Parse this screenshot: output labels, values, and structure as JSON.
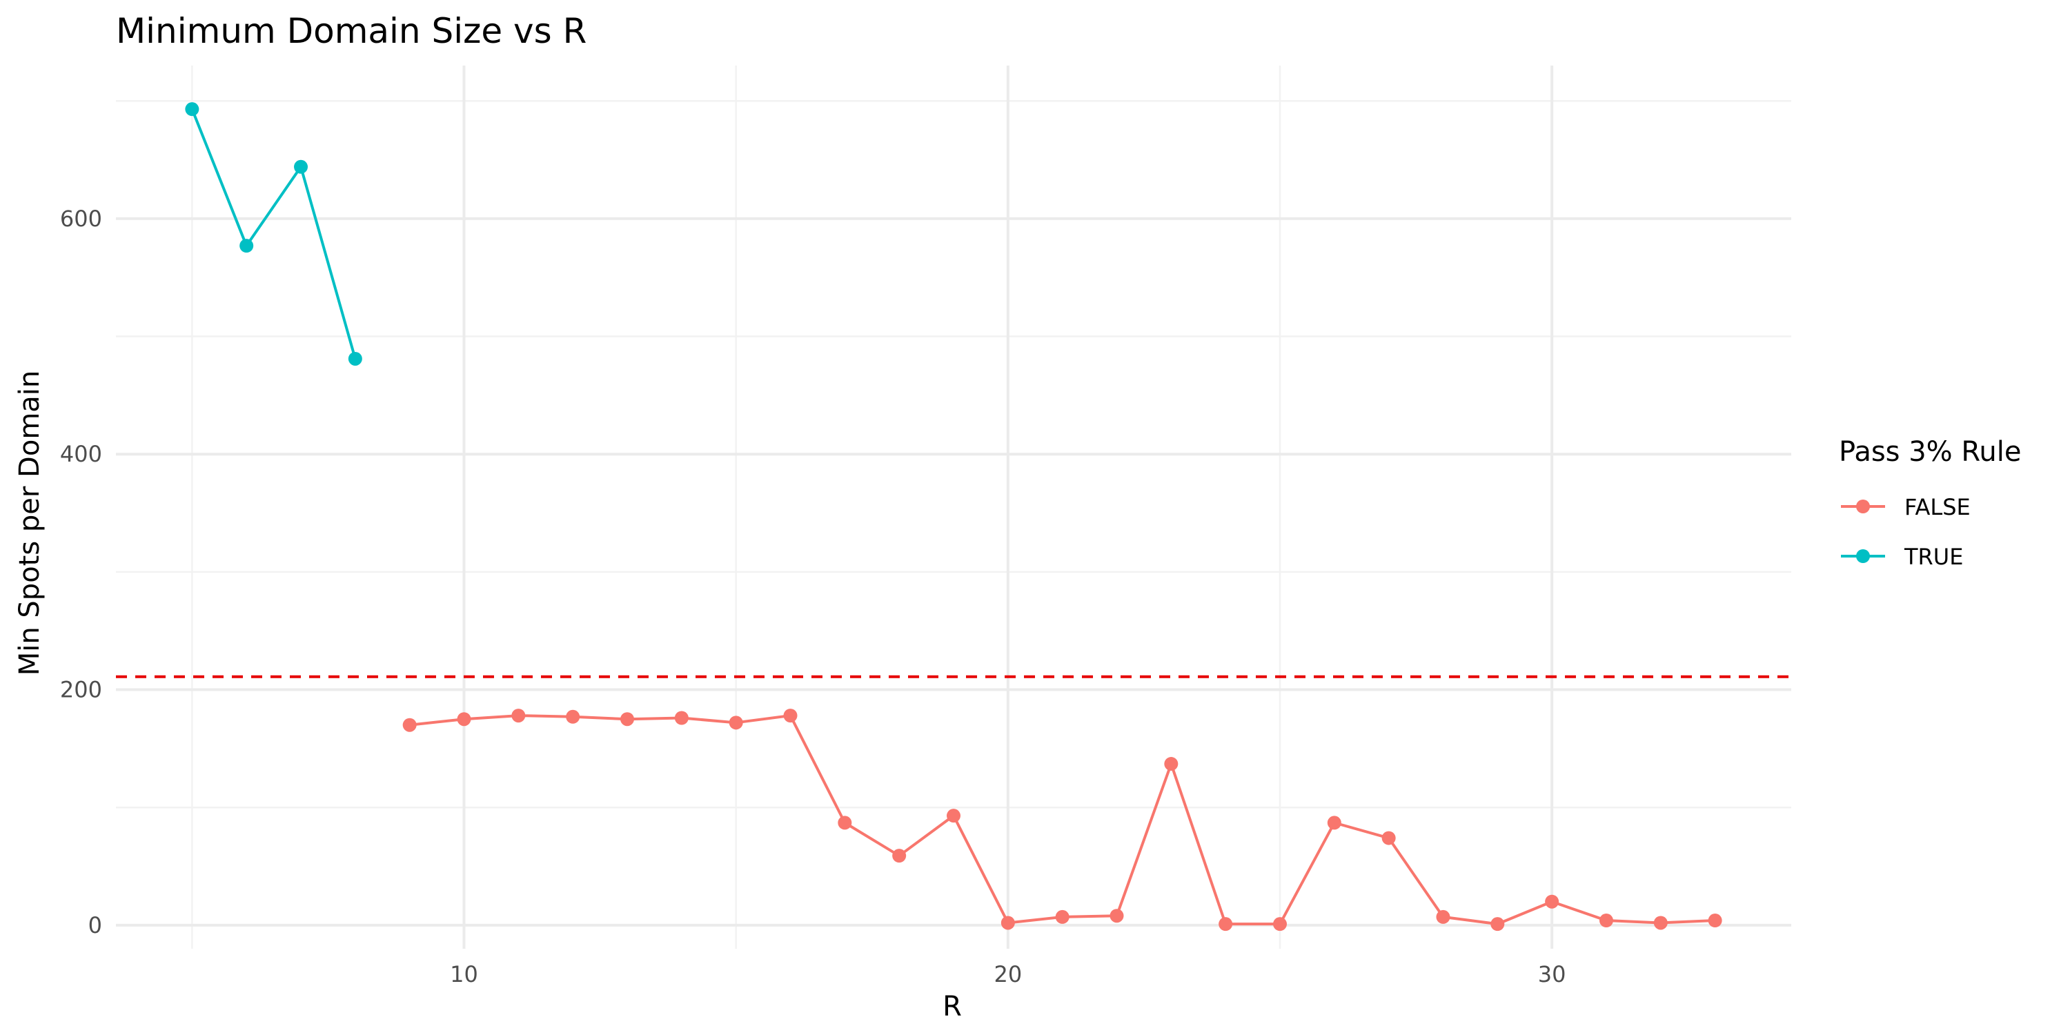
{
  "chart_data": {
    "type": "line",
    "title": "Minimum Domain Size vs R",
    "xlabel": "R",
    "ylabel": "Min Spots per Domain",
    "xlim": [
      3.6,
      34.4
    ],
    "ylim": [
      -20,
      730
    ],
    "x_ticks": [
      10,
      20,
      30
    ],
    "y_ticks": [
      0,
      200,
      400,
      600
    ],
    "x_minor_ticks": [
      5,
      15,
      25
    ],
    "y_minor_ticks": [
      100,
      300,
      500,
      700
    ],
    "grid": true,
    "legend": {
      "title": "Pass 3% Rule",
      "position": "right"
    },
    "threshold": {
      "y": 211,
      "color": "#e60000",
      "style": "dashed"
    },
    "series": [
      {
        "name": "FALSE",
        "color": "#F8766D",
        "x": [
          9,
          10,
          11,
          12,
          13,
          14,
          15,
          16,
          17,
          18,
          19,
          20,
          21,
          22,
          23,
          24,
          25,
          26,
          27,
          28,
          29,
          30,
          31,
          32,
          33
        ],
        "y": [
          170,
          175,
          178,
          177,
          175,
          176,
          172,
          178,
          87,
          59,
          93,
          2,
          7,
          8,
          137,
          1,
          1,
          87,
          74,
          7,
          1,
          20,
          4,
          2,
          4
        ]
      },
      {
        "name": "TRUE",
        "color": "#00BFC4",
        "x": [
          5,
          6,
          7,
          8
        ],
        "y": [
          693,
          577,
          644,
          481
        ]
      }
    ]
  }
}
